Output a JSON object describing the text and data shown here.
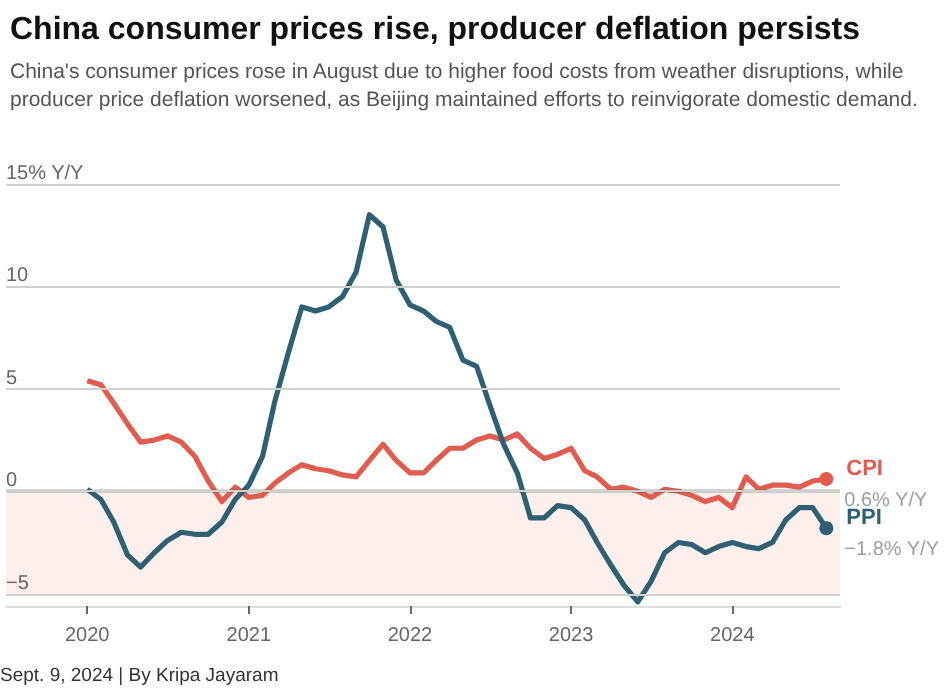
{
  "chart_data": {
    "type": "line",
    "title": "China consumer prices rise, producer deflation persists",
    "subtitle": "China's consumer prices rose in August due to higher food costs from weather disruptions, while producer price deflation worsened, as Beijing maintained efforts to reinvigorate domestic demand.",
    "x": [
      "2020-01",
      "2020-02",
      "2020-03",
      "2020-04",
      "2020-05",
      "2020-06",
      "2020-07",
      "2020-08",
      "2020-09",
      "2020-10",
      "2020-11",
      "2020-12",
      "2021-01",
      "2021-02",
      "2021-03",
      "2021-04",
      "2021-05",
      "2021-06",
      "2021-07",
      "2021-08",
      "2021-09",
      "2021-10",
      "2021-11",
      "2021-12",
      "2022-01",
      "2022-02",
      "2022-03",
      "2022-04",
      "2022-05",
      "2022-06",
      "2022-07",
      "2022-08",
      "2022-09",
      "2022-10",
      "2022-11",
      "2022-12",
      "2023-01",
      "2023-02",
      "2023-03",
      "2023-04",
      "2023-05",
      "2023-06",
      "2023-07",
      "2023-08",
      "2023-09",
      "2023-10",
      "2023-11",
      "2023-12",
      "2024-01",
      "2024-02",
      "2024-03",
      "2024-04",
      "2024-05",
      "2024-06",
      "2024-07",
      "2024-08"
    ],
    "series": [
      {
        "name": "CPI",
        "color": "#e05c4f",
        "values": [
          5.4,
          5.2,
          4.3,
          3.3,
          2.4,
          2.5,
          2.7,
          2.4,
          1.7,
          0.5,
          -0.5,
          0.2,
          -0.3,
          -0.2,
          0.4,
          0.9,
          1.3,
          1.1,
          1.0,
          0.8,
          0.7,
          1.5,
          2.3,
          1.5,
          0.9,
          0.9,
          1.5,
          2.1,
          2.1,
          2.5,
          2.7,
          2.5,
          2.8,
          2.1,
          1.6,
          1.8,
          2.1,
          1.0,
          0.7,
          0.1,
          0.2,
          0.0,
          -0.3,
          0.1,
          0.0,
          -0.2,
          -0.5,
          -0.3,
          -0.8,
          0.7,
          0.1,
          0.3,
          0.3,
          0.2,
          0.5,
          0.6
        ]
      },
      {
        "name": "PPI",
        "color": "#2e5f73",
        "values": [
          0.1,
          -0.4,
          -1.5,
          -3.1,
          -3.7,
          -3.0,
          -2.4,
          -2.0,
          -2.1,
          -2.1,
          -1.5,
          -0.4,
          0.3,
          1.7,
          4.4,
          6.8,
          9.0,
          8.8,
          9.0,
          9.5,
          10.7,
          13.5,
          12.9,
          10.3,
          9.1,
          8.8,
          8.3,
          8.0,
          6.4,
          6.1,
          4.2,
          2.3,
          0.9,
          -1.3,
          -1.3,
          -0.7,
          -0.8,
          -1.4,
          -2.5,
          -3.6,
          -4.6,
          -5.4,
          -4.4,
          -3.0,
          -2.5,
          -2.6,
          -3.0,
          -2.7,
          -2.5,
          -2.7,
          -2.8,
          -2.5,
          -1.4,
          -0.8,
          -0.8,
          -1.8
        ]
      }
    ],
    "xlim": [
      "2019-07",
      "2024-09"
    ],
    "xticks": [
      "2020",
      "2021",
      "2022",
      "2023",
      "2024"
    ],
    "ylim": [
      -5.6,
      15
    ],
    "yticks": [
      {
        "value": 15,
        "label": "15% Y/Y"
      },
      10,
      5,
      0,
      {
        "value": -5,
        "label": "−5"
      }
    ],
    "grid": "y",
    "ref_lines": [
      {
        "axis": "y",
        "value": 0,
        "color": "#555555"
      }
    ],
    "bands": [
      {
        "axis": "y",
        "from": -5,
        "to": 0,
        "color": "#fdf0ec"
      }
    ],
    "annotations": [
      {
        "text": "0.6% Y/Y",
        "x": "2024-08",
        "y": 0.6
      },
      {
        "text": "−1.8% Y/Y",
        "x": "2024-08",
        "y": -1.8
      },
      "Sept. 9, 2024 | By Kripa Jayaram"
    ]
  }
}
